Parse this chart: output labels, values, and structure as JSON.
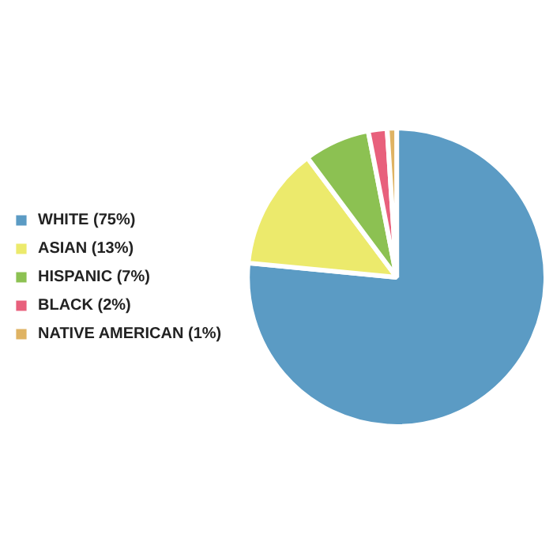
{
  "chart_data": {
    "type": "pie",
    "categories": [
      "WHITE (75%)",
      "ASIAN (13%)",
      "HISPANIC (7%)",
      "BLACK (2%)",
      "NATIVE AMERICAN (1%)"
    ],
    "values": [
      75,
      13,
      7,
      2,
      1
    ],
    "colors": [
      "#5b9bc4",
      "#ecea6c",
      "#8cc152",
      "#e8607c",
      "#dfb363"
    ],
    "legend": "left"
  }
}
